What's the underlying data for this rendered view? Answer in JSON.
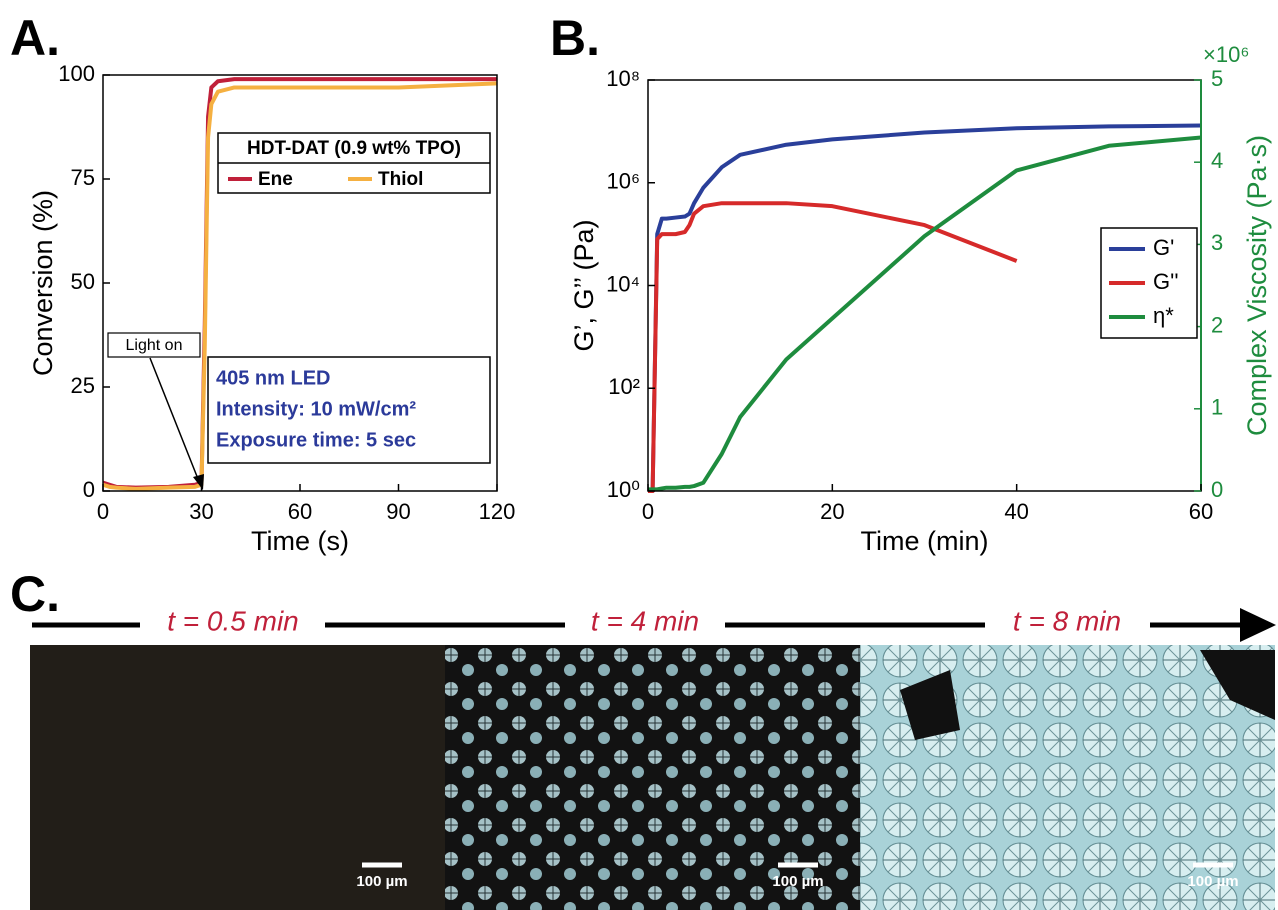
{
  "panel_labels": [
    "A.",
    "B.",
    "C."
  ],
  "micrographs": [
    {
      "time": "t = 0.5 min",
      "scale_bar": "100 µm"
    },
    {
      "time": "t = 4 min",
      "scale_bar": "100 µm"
    },
    {
      "time": "t = 8 min",
      "scale_bar": "100 µm"
    }
  ],
  "chart_data": [
    {
      "type": "line",
      "x_label": "Time (s)",
      "y_label": "Conversion (%)",
      "x": [
        0,
        2,
        4,
        10,
        20,
        28,
        30,
        31,
        32,
        33,
        35,
        40,
        60,
        90,
        120
      ],
      "series": [
        {
          "name": "Ene",
          "color": "#c0203a",
          "values": [
            2,
            1.5,
            1,
            0.8,
            1,
            1.5,
            2,
            40,
            90,
            97,
            98.5,
            99,
            99,
            99,
            99
          ]
        },
        {
          "name": "Thiol",
          "color": "#f5b041",
          "values": [
            1.5,
            1,
            0.8,
            0.5,
            0.8,
            1,
            1.5,
            35,
            85,
            93,
            96,
            97,
            97,
            97,
            98
          ]
        }
      ],
      "xlim": [
        0,
        120
      ],
      "ylim": [
        0,
        100
      ],
      "xticks": [
        0,
        30,
        60,
        90,
        120
      ],
      "yticks": [
        0,
        25,
        50,
        75,
        100
      ],
      "legend_title": "HDT-DAT (0.9 wt% TPO)",
      "legend": "upper right",
      "annotation": "Light on",
      "info_box": [
        "405 nm LED",
        "Intensity: 10 mW/cm²",
        "Exposure time: 5 sec"
      ]
    },
    {
      "type": "line",
      "x_label": "Time (min)",
      "y_label": "G’, G’’ (Pa)",
      "y2_label": "Complex Viscosity (Pa·s)",
      "x": [
        0,
        0.5,
        1,
        1.5,
        2,
        3,
        4,
        4.5,
        5,
        6,
        8,
        10,
        15,
        20,
        30,
        40,
        50,
        60
      ],
      "series": [
        {
          "name": "G'",
          "color": "#2a3f9a",
          "values": [
            1,
            1,
            100000,
            200000,
            200000,
            210000,
            220000,
            250000,
            400000,
            800000,
            2000000,
            3500000,
            5500000,
            7000000,
            9500000,
            11500000,
            12500000,
            13000000
          ]
        },
        {
          "name": "G''",
          "color": "#d62a2a",
          "values": [
            1,
            1,
            80000,
            100000,
            100000,
            100000,
            110000,
            150000,
            250000,
            350000,
            400000,
            400000,
            400000,
            350000,
            150000,
            30000,
            null,
            null
          ]
        },
        {
          "name": "η*",
          "color": "#1e8c3e",
          "axis": "y2",
          "values": [
            0.02,
            0.02,
            0.02,
            0.03,
            0.04,
            0.04,
            0.05,
            0.05,
            0.06,
            0.1,
            0.45,
            0.9,
            1.6,
            2.1,
            3.1,
            3.9,
            4.2,
            4.3
          ]
        }
      ],
      "xlim": [
        0,
        60
      ],
      "ylim": [
        1,
        100000000
      ],
      "y2lim": [
        0,
        5
      ],
      "xticks": [
        0,
        20,
        40,
        60
      ],
      "yticks": [
        {
          "value": 1,
          "label": "10⁰"
        },
        {
          "value": 100,
          "label": "10²"
        },
        {
          "value": 10000,
          "label": "10⁴"
        },
        {
          "value": 1000000,
          "label": "10⁶"
        },
        {
          "value": 100000000,
          "label": "10⁸"
        }
      ],
      "y2ticks": [
        0,
        1,
        2,
        3,
        4,
        5
      ],
      "y2_multiplier": "×10⁶",
      "log_y": true,
      "legend": "right"
    }
  ]
}
